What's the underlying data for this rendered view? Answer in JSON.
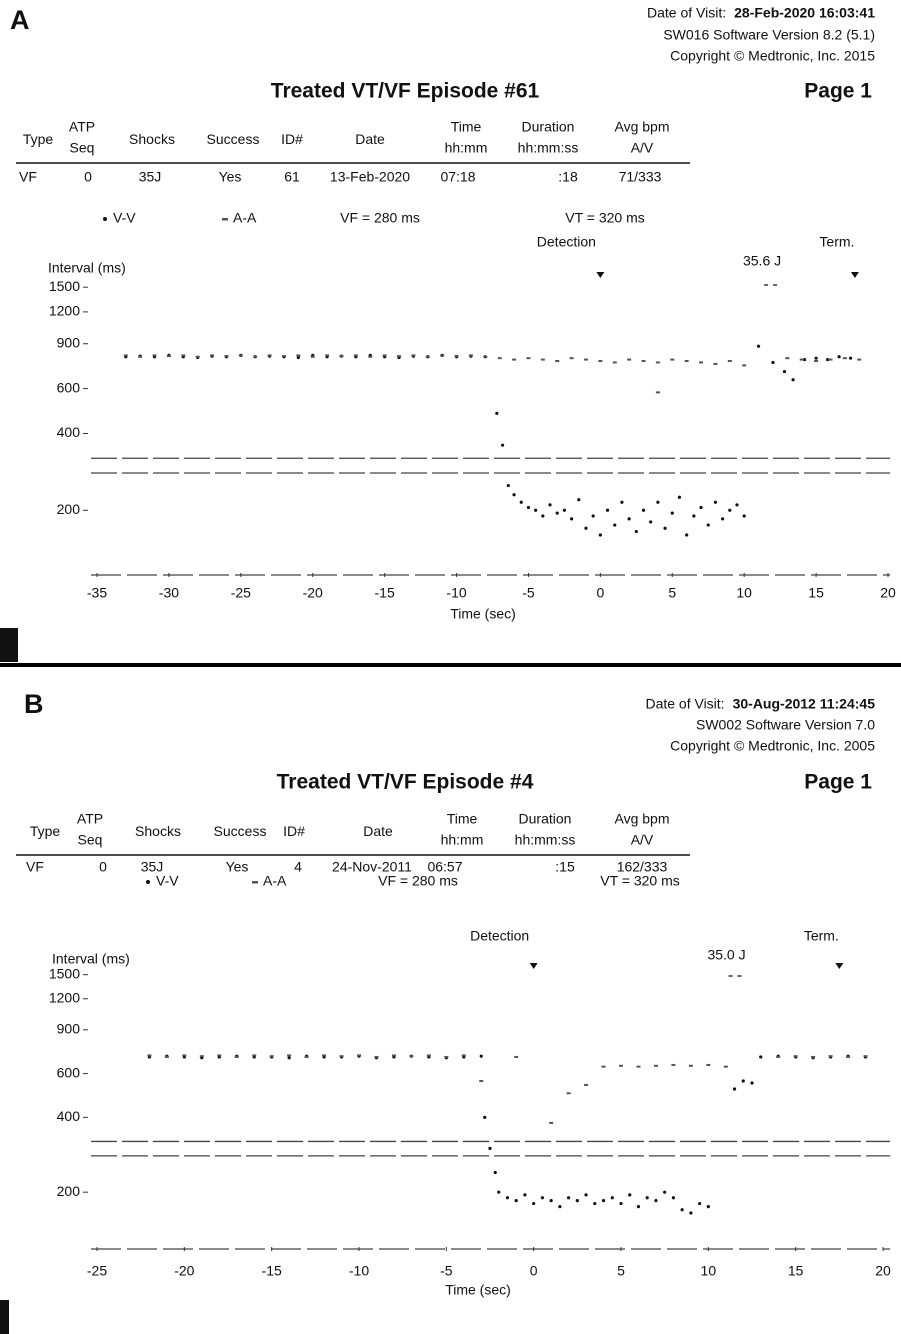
{
  "panels": [
    {
      "label": "A",
      "visit_label": "Date of Visit:",
      "visit_date": "28-Feb-2020 16:03:41",
      "software": "SW016 Software Version 8.2 (5.1)",
      "copyright": "Copyright © Medtronic, Inc. 2015",
      "title": "Treated VT/VF Episode #61",
      "page": "Page 1",
      "table": {
        "headers": [
          [
            "Type"
          ],
          [
            "ATP",
            "Seq"
          ],
          [
            "Shocks"
          ],
          [
            "Success"
          ],
          [
            "ID#"
          ],
          [
            "Date"
          ],
          [
            "Time",
            "hh:mm"
          ],
          [
            "Duration",
            "hh:mm:ss"
          ],
          [
            "Avg bpm",
            "A/V"
          ]
        ],
        "row": [
          "VF",
          "0",
          "35J",
          "Yes",
          "61",
          "13-Feb-2020",
          "07:18",
          ":18",
          "71/333"
        ]
      }
    },
    {
      "label": "B",
      "visit_label": "Date of Visit:",
      "visit_date": "30-Aug-2012 11:24:45",
      "software": "SW002 Software Version 7.0",
      "copyright": "Copyright © Medtronic, Inc. 2005",
      "title": "Treated VT/VF Episode #4",
      "page": "Page 1",
      "table": {
        "headers": [
          [
            "Type"
          ],
          [
            "ATP",
            "Seq"
          ],
          [
            "Shocks"
          ],
          [
            "Success"
          ],
          [
            "ID#"
          ],
          [
            "Date"
          ],
          [
            "Time",
            "hh:mm"
          ],
          [
            "Duration",
            "hh:mm:ss"
          ],
          [
            "Avg bpm",
            "A/V"
          ]
        ],
        "row": [
          "VF",
          "0",
          "35J",
          "Yes",
          "4",
          "24-Nov-2011",
          "06:57",
          ":15",
          "162/333"
        ]
      }
    }
  ],
  "chart_data": [
    {
      "type": "scatter",
      "x_label": "Time (sec)",
      "y_label": "Interval (ms)",
      "log_scale": true,
      "xlim": [
        -35,
        20
      ],
      "xticks": [
        -35,
        -30,
        -25,
        -20,
        -15,
        -10,
        -5,
        0,
        5,
        10,
        15,
        20
      ],
      "ylim": [
        100,
        1800
      ],
      "yticks": [
        1500,
        1200,
        900,
        600,
        400,
        200
      ],
      "thresholds": [
        {
          "label": "VF = 280 ms",
          "value": 280
        },
        {
          "label": "VT = 320 ms",
          "value": 320
        }
      ],
      "annotations": [
        {
          "text": "Detection",
          "x": 0
        },
        {
          "text": "35.6 J",
          "x": 11.8
        },
        {
          "text": "Term.",
          "x": 17.7
        }
      ],
      "series": [
        {
          "name": "V-V",
          "color": "#111111",
          "marker": "dot",
          "x": [
            -33,
            -32,
            -31,
            -30,
            -29,
            -28,
            -27,
            -26,
            -25,
            -24,
            -23,
            -22,
            -21,
            -20,
            -19,
            -18,
            -17,
            -16,
            -15,
            -14,
            -13,
            -12,
            -11,
            -10,
            -9,
            -8,
            -7.2,
            -6.8,
            -6.4,
            -6,
            -5.5,
            -5,
            -4.5,
            -4,
            -3.5,
            -3,
            -2.5,
            -2,
            -1.5,
            -1,
            -0.5,
            0,
            0.5,
            1,
            1.5,
            2,
            2.5,
            3,
            3.5,
            4,
            4.5,
            5,
            5.5,
            6,
            6.5,
            7,
            7.5,
            8,
            8.5,
            9,
            9.5,
            10,
            11,
            12,
            12.8,
            13.4,
            14.2,
            15,
            15.8,
            16.6,
            17.4
          ],
          "values": [
            800,
            805,
            800,
            810,
            800,
            795,
            805,
            800,
            810,
            800,
            805,
            800,
            795,
            810,
            800,
            805,
            800,
            810,
            800,
            795,
            805,
            800,
            810,
            800,
            805,
            800,
            480,
            360,
            250,
            230,
            215,
            205,
            200,
            190,
            210,
            195,
            200,
            185,
            220,
            170,
            190,
            160,
            200,
            175,
            215,
            185,
            165,
            200,
            180,
            215,
            170,
            195,
            225,
            160,
            190,
            205,
            175,
            215,
            185,
            200,
            210,
            190,
            880,
            760,
            700,
            650,
            780,
            790,
            780,
            800,
            790
          ]
        },
        {
          "name": "A-A",
          "color": "#555555",
          "marker": "dash",
          "x": [
            -33,
            -32,
            -31,
            -30,
            -29,
            -28,
            -27,
            -26,
            -25,
            -24,
            -23,
            -22,
            -21,
            -20,
            -19,
            -18,
            -17,
            -16,
            -15,
            -14,
            -13,
            -12,
            -11,
            -10,
            -9,
            -8,
            -7,
            -6,
            -5,
            -4,
            -3,
            -2,
            -1,
            0,
            1,
            2,
            3,
            4,
            5,
            6,
            7,
            8,
            9,
            10,
            13,
            14,
            15,
            16,
            17,
            18,
            4
          ],
          "values": [
            810,
            800,
            810,
            805,
            810,
            800,
            810,
            805,
            810,
            800,
            810,
            805,
            810,
            800,
            810,
            805,
            810,
            800,
            810,
            805,
            810,
            800,
            810,
            805,
            810,
            800,
            790,
            780,
            790,
            780,
            770,
            790,
            780,
            770,
            760,
            780,
            770,
            760,
            780,
            770,
            760,
            750,
            770,
            740,
            790,
            780,
            770,
            780,
            790,
            780,
            580
          ]
        }
      ]
    },
    {
      "type": "scatter",
      "x_label": "Time (sec)",
      "y_label": "Interval (ms)",
      "log_scale": true,
      "xlim": [
        -25,
        20
      ],
      "xticks": [
        -25,
        -20,
        -15,
        -10,
        -5,
        0,
        5,
        10,
        15,
        20
      ],
      "ylim": [
        100,
        1800
      ],
      "yticks": [
        1500,
        1200,
        900,
        600,
        400,
        200
      ],
      "thresholds": [
        {
          "label": "VF = 280 ms",
          "value": 280
        },
        {
          "label": "VT = 320 ms",
          "value": 320
        }
      ],
      "annotations": [
        {
          "text": "Detection",
          "x": 0
        },
        {
          "text": "35.0 J",
          "x": 11.5
        },
        {
          "text": "Term.",
          "x": 17.5
        }
      ],
      "series": [
        {
          "name": "V-V",
          "color": "#111111",
          "marker": "dot",
          "x": [
            -22,
            -21,
            -20,
            -19,
            -18,
            -17,
            -16,
            -15,
            -14,
            -13,
            -12,
            -11,
            -10,
            -9,
            -8,
            -7,
            -6,
            -5,
            -4,
            -3,
            -2.8,
            -2.5,
            -2.2,
            -2,
            -1.5,
            -1,
            -0.5,
            0,
            0.5,
            1,
            1.5,
            2,
            2.5,
            3,
            3.5,
            4,
            4.5,
            5,
            5.5,
            6,
            6.5,
            7,
            7.5,
            8,
            8.5,
            9,
            9.5,
            10,
            11.5,
            12,
            12.5,
            13,
            14,
            15,
            16,
            17,
            18,
            19
          ],
          "values": [
            700,
            705,
            700,
            695,
            700,
            705,
            700,
            700,
            695,
            705,
            700,
            700,
            705,
            695,
            700,
            705,
            700,
            695,
            700,
            705,
            400,
            300,
            240,
            200,
            190,
            185,
            195,
            180,
            190,
            185,
            175,
            190,
            185,
            195,
            180,
            185,
            190,
            180,
            195,
            175,
            190,
            185,
            200,
            190,
            170,
            165,
            180,
            175,
            520,
            560,
            550,
            700,
            705,
            700,
            695,
            700,
            705,
            700
          ]
        },
        {
          "name": "A-A",
          "color": "#555555",
          "marker": "dash",
          "x": [
            -22,
            -21,
            -20,
            -19,
            -18,
            -17,
            -16,
            -15,
            -14,
            -13,
            -12,
            -11,
            -10,
            -9,
            -8,
            -7,
            -6,
            -5,
            -4,
            -3,
            -1,
            1,
            2,
            3,
            4,
            5,
            6,
            7,
            8,
            9,
            10,
            11,
            14,
            15,
            16,
            17,
            18,
            19
          ],
          "values": [
            710,
            700,
            710,
            705,
            710,
            700,
            710,
            705,
            710,
            700,
            710,
            705,
            710,
            700,
            710,
            705,
            710,
            700,
            710,
            560,
            700,
            380,
            500,
            540,
            640,
            645,
            640,
            645,
            650,
            645,
            650,
            640,
            700,
            705,
            700,
            705,
            700,
            705
          ]
        }
      ]
    }
  ]
}
